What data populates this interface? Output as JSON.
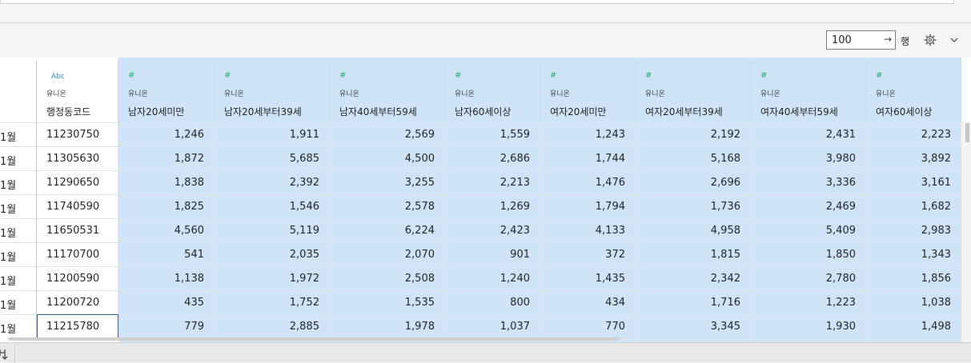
{
  "toolbar": {
    "rows_value": "100",
    "rows_arrow": "→",
    "rows_label": "행"
  },
  "columns": [
    {
      "type": "Abc",
      "source": "유니온",
      "name": "행정동코드",
      "kind": "text"
    },
    {
      "type": "#",
      "source": "유니온",
      "name": "남자20세미만",
      "kind": "num"
    },
    {
      "type": "#",
      "source": "유니온",
      "name": "남자20세부터39세",
      "kind": "num"
    },
    {
      "type": "#",
      "source": "유니온",
      "name": "남자40세부터59세",
      "kind": "num"
    },
    {
      "type": "#",
      "source": "유니온",
      "name": "남자60세이상",
      "kind": "num"
    },
    {
      "type": "#",
      "source": "유니온",
      "name": "여자20세미만",
      "kind": "num"
    },
    {
      "type": "#",
      "source": "유니온",
      "name": "여자20세부터39세",
      "kind": "num"
    },
    {
      "type": "#",
      "source": "유니온",
      "name": "여자40세부터59세",
      "kind": "num"
    },
    {
      "type": "#",
      "source": "유니온",
      "name": "여자60세이상",
      "kind": "num"
    }
  ],
  "rows": [
    {
      "month": "1월",
      "cells": [
        "11230750",
        "1,246",
        "1,911",
        "2,569",
        "1,559",
        "1,243",
        "2,192",
        "2,431",
        "2,223"
      ]
    },
    {
      "month": "1월",
      "cells": [
        "11305630",
        "1,872",
        "5,685",
        "4,500",
        "2,686",
        "1,744",
        "5,168",
        "3,980",
        "3,892"
      ]
    },
    {
      "month": "1월",
      "cells": [
        "11290650",
        "1,838",
        "2,392",
        "3,255",
        "2,213",
        "1,476",
        "2,696",
        "3,336",
        "3,161"
      ]
    },
    {
      "month": "1월",
      "cells": [
        "11740590",
        "1,825",
        "1,546",
        "2,578",
        "1,269",
        "1,794",
        "1,736",
        "2,469",
        "1,682"
      ]
    },
    {
      "month": "1월",
      "cells": [
        "11650531",
        "4,560",
        "5,119",
        "6,224",
        "2,423",
        "4,133",
        "4,958",
        "5,409",
        "2,983"
      ]
    },
    {
      "month": "1월",
      "cells": [
        "11170700",
        "541",
        "2,035",
        "2,070",
        "901",
        "372",
        "1,815",
        "1,850",
        "1,343"
      ]
    },
    {
      "month": "1월",
      "cells": [
        "11200590",
        "1,138",
        "1,972",
        "2,508",
        "1,240",
        "1,435",
        "2,342",
        "2,780",
        "1,856"
      ]
    },
    {
      "month": "1월",
      "cells": [
        "11200720",
        "435",
        "1,752",
        "1,535",
        "800",
        "434",
        "1,716",
        "1,223",
        "1,038"
      ]
    },
    {
      "month": "1월",
      "cells": [
        "11215780",
        "779",
        "2,885",
        "1,978",
        "1,037",
        "770",
        "3,345",
        "1,930",
        "1,498"
      ]
    }
  ],
  "colors": {
    "numeric_column_bg": "#cfe5f7",
    "accent": "#6aa7d3",
    "number_type_icon": "#1fb07a",
    "text_type_icon": "#2a88c5"
  },
  "icons": {
    "settings": "gear-icon",
    "expand": "chevron-down-icon",
    "number_type": "hash-icon",
    "status": "flow-icon"
  }
}
